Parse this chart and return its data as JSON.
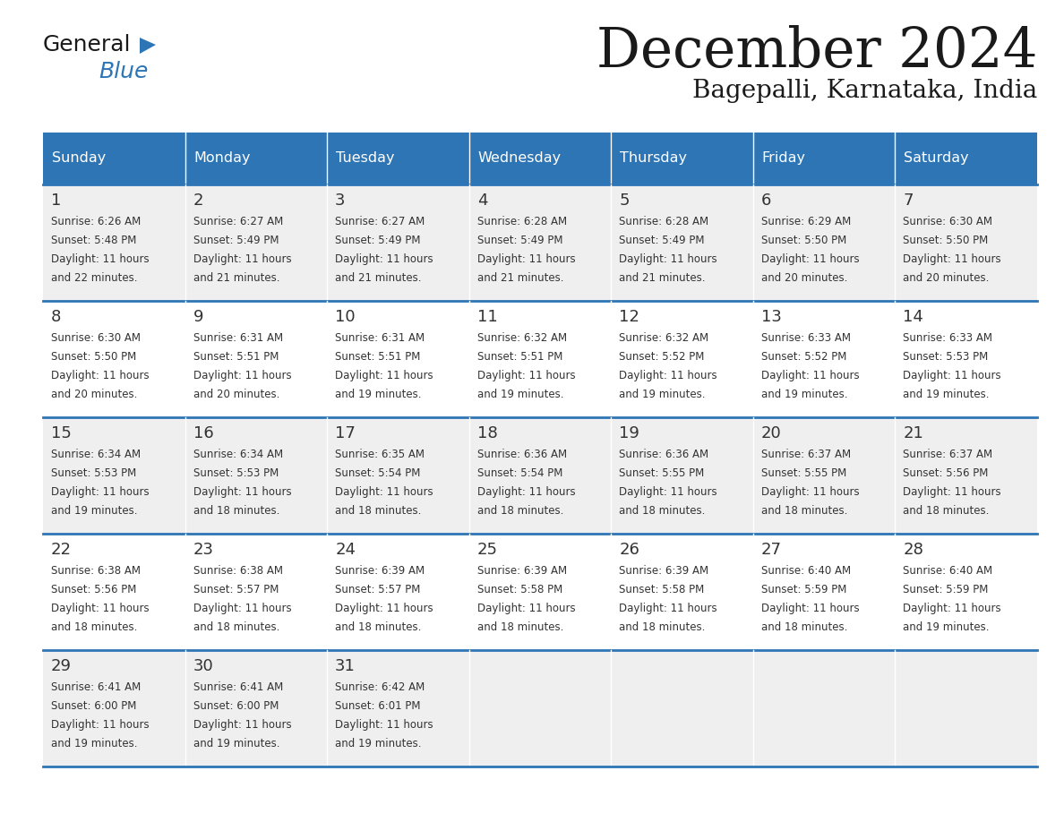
{
  "title": "December 2024",
  "subtitle": "Bagepalli, Karnataka, India",
  "header_color": "#2e75b6",
  "header_text_color": "#ffffff",
  "days_of_week": [
    "Sunday",
    "Monday",
    "Tuesday",
    "Wednesday",
    "Thursday",
    "Friday",
    "Saturday"
  ],
  "weeks": [
    [
      {
        "day": 1,
        "sunrise": "6:26 AM",
        "sunset": "5:48 PM",
        "daylight": "11 hours\nand 22 minutes."
      },
      {
        "day": 2,
        "sunrise": "6:27 AM",
        "sunset": "5:49 PM",
        "daylight": "11 hours\nand 21 minutes."
      },
      {
        "day": 3,
        "sunrise": "6:27 AM",
        "sunset": "5:49 PM",
        "daylight": "11 hours\nand 21 minutes."
      },
      {
        "day": 4,
        "sunrise": "6:28 AM",
        "sunset": "5:49 PM",
        "daylight": "11 hours\nand 21 minutes."
      },
      {
        "day": 5,
        "sunrise": "6:28 AM",
        "sunset": "5:49 PM",
        "daylight": "11 hours\nand 21 minutes."
      },
      {
        "day": 6,
        "sunrise": "6:29 AM",
        "sunset": "5:50 PM",
        "daylight": "11 hours\nand 20 minutes."
      },
      {
        "day": 7,
        "sunrise": "6:30 AM",
        "sunset": "5:50 PM",
        "daylight": "11 hours\nand 20 minutes."
      }
    ],
    [
      {
        "day": 8,
        "sunrise": "6:30 AM",
        "sunset": "5:50 PM",
        "daylight": "11 hours\nand 20 minutes."
      },
      {
        "day": 9,
        "sunrise": "6:31 AM",
        "sunset": "5:51 PM",
        "daylight": "11 hours\nand 20 minutes."
      },
      {
        "day": 10,
        "sunrise": "6:31 AM",
        "sunset": "5:51 PM",
        "daylight": "11 hours\nand 19 minutes."
      },
      {
        "day": 11,
        "sunrise": "6:32 AM",
        "sunset": "5:51 PM",
        "daylight": "11 hours\nand 19 minutes."
      },
      {
        "day": 12,
        "sunrise": "6:32 AM",
        "sunset": "5:52 PM",
        "daylight": "11 hours\nand 19 minutes."
      },
      {
        "day": 13,
        "sunrise": "6:33 AM",
        "sunset": "5:52 PM",
        "daylight": "11 hours\nand 19 minutes."
      },
      {
        "day": 14,
        "sunrise": "6:33 AM",
        "sunset": "5:53 PM",
        "daylight": "11 hours\nand 19 minutes."
      }
    ],
    [
      {
        "day": 15,
        "sunrise": "6:34 AM",
        "sunset": "5:53 PM",
        "daylight": "11 hours\nand 19 minutes."
      },
      {
        "day": 16,
        "sunrise": "6:34 AM",
        "sunset": "5:53 PM",
        "daylight": "11 hours\nand 18 minutes."
      },
      {
        "day": 17,
        "sunrise": "6:35 AM",
        "sunset": "5:54 PM",
        "daylight": "11 hours\nand 18 minutes."
      },
      {
        "day": 18,
        "sunrise": "6:36 AM",
        "sunset": "5:54 PM",
        "daylight": "11 hours\nand 18 minutes."
      },
      {
        "day": 19,
        "sunrise": "6:36 AM",
        "sunset": "5:55 PM",
        "daylight": "11 hours\nand 18 minutes."
      },
      {
        "day": 20,
        "sunrise": "6:37 AM",
        "sunset": "5:55 PM",
        "daylight": "11 hours\nand 18 minutes."
      },
      {
        "day": 21,
        "sunrise": "6:37 AM",
        "sunset": "5:56 PM",
        "daylight": "11 hours\nand 18 minutes."
      }
    ],
    [
      {
        "day": 22,
        "sunrise": "6:38 AM",
        "sunset": "5:56 PM",
        "daylight": "11 hours\nand 18 minutes."
      },
      {
        "day": 23,
        "sunrise": "6:38 AM",
        "sunset": "5:57 PM",
        "daylight": "11 hours\nand 18 minutes."
      },
      {
        "day": 24,
        "sunrise": "6:39 AM",
        "sunset": "5:57 PM",
        "daylight": "11 hours\nand 18 minutes."
      },
      {
        "day": 25,
        "sunrise": "6:39 AM",
        "sunset": "5:58 PM",
        "daylight": "11 hours\nand 18 minutes."
      },
      {
        "day": 26,
        "sunrise": "6:39 AM",
        "sunset": "5:58 PM",
        "daylight": "11 hours\nand 18 minutes."
      },
      {
        "day": 27,
        "sunrise": "6:40 AM",
        "sunset": "5:59 PM",
        "daylight": "11 hours\nand 18 minutes."
      },
      {
        "day": 28,
        "sunrise": "6:40 AM",
        "sunset": "5:59 PM",
        "daylight": "11 hours\nand 19 minutes."
      }
    ],
    [
      {
        "day": 29,
        "sunrise": "6:41 AM",
        "sunset": "6:00 PM",
        "daylight": "11 hours\nand 19 minutes."
      },
      {
        "day": 30,
        "sunrise": "6:41 AM",
        "sunset": "6:00 PM",
        "daylight": "11 hours\nand 19 minutes."
      },
      {
        "day": 31,
        "sunrise": "6:42 AM",
        "sunset": "6:01 PM",
        "daylight": "11 hours\nand 19 minutes."
      },
      null,
      null,
      null,
      null
    ]
  ],
  "bg_color": "#ffffff",
  "cell_bg_even": "#efefef",
  "cell_bg_odd": "#ffffff",
  "divider_color": "#2e75b6",
  "text_color": "#333333",
  "day_num_color": "#333333",
  "logo_general_color": "#1a1a1a",
  "logo_blue_color": "#2e75b6",
  "title_color": "#1a1a1a",
  "subtitle_color": "#1a1a1a"
}
